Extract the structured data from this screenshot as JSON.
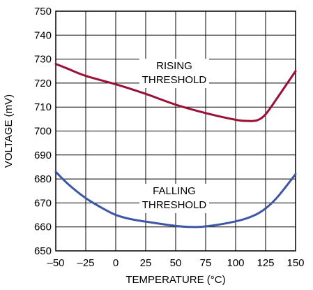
{
  "chart_data": {
    "type": "line",
    "title": "",
    "xlabel": "TEMPERATURE (°C)",
    "ylabel": "VOLTAGE (mV)",
    "xlim": [
      -50,
      150
    ],
    "ylim": [
      650,
      750
    ],
    "x_ticks": [
      -50,
      -25,
      0,
      25,
      50,
      75,
      100,
      125,
      150
    ],
    "x_tick_labels": [
      "–50",
      "–25",
      "0",
      "25",
      "50",
      "75",
      "100",
      "125",
      "150"
    ],
    "y_ticks": [
      650,
      660,
      670,
      680,
      690,
      700,
      710,
      720,
      730,
      740,
      750
    ],
    "y_tick_labels": [
      "650",
      "660",
      "670",
      "680",
      "690",
      "700",
      "710",
      "720",
      "730",
      "740",
      "750"
    ],
    "grid": true,
    "series": [
      {
        "name": "",
        "color": "#9b1035",
        "x": [
          -50,
          -40,
          -25,
          0,
          25,
          50,
          75,
          100,
          110,
          118,
          125,
          135,
          150
        ],
        "y": [
          728,
          726,
          723,
          719.5,
          715.5,
          711,
          707.5,
          704.7,
          704.2,
          704.5,
          707,
          714,
          725
        ]
      },
      {
        "name": "",
        "color": "#3e56a7",
        "x": [
          -50,
          -40,
          -25,
          -10,
          0,
          12,
          25,
          50,
          62,
          75,
          100,
          115,
          125,
          135,
          150
        ],
        "y": [
          683,
          678,
          672,
          667.5,
          665,
          663.3,
          662.2,
          660.4,
          660,
          660.2,
          662.3,
          664.7,
          667.7,
          672.5,
          682
        ]
      }
    ],
    "annotations": [
      {
        "lines": [
          "RISING",
          "THRESHOLD"
        ]
      },
      {
        "lines": [
          "FALLING",
          "THRESHOLD"
        ]
      }
    ]
  }
}
